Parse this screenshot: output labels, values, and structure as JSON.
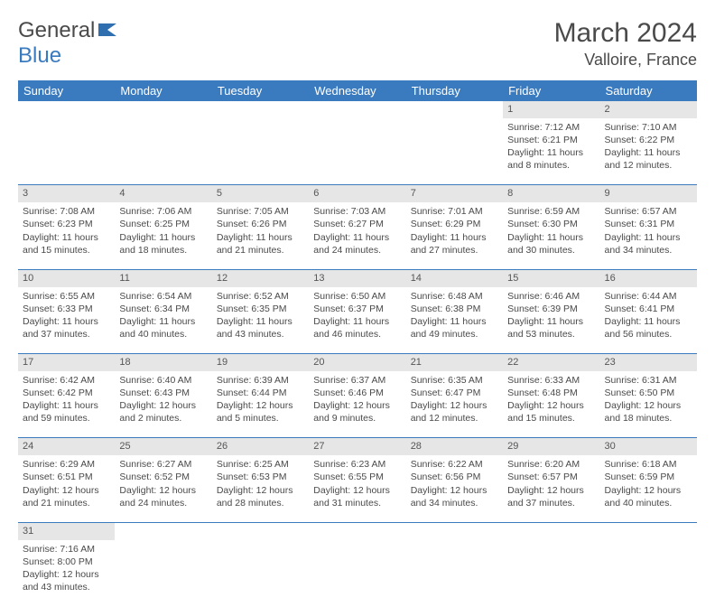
{
  "logo": {
    "part1": "General",
    "part2": "Blue"
  },
  "title": "March 2024",
  "location": "Valloire, France",
  "colors": {
    "header_bg": "#3a7bbf",
    "header_text": "#ffffff",
    "daynum_bg": "#e6e6e6",
    "text": "#4a4a4a",
    "rule": "#3a7bbf"
  },
  "weekdays": [
    "Sunday",
    "Monday",
    "Tuesday",
    "Wednesday",
    "Thursday",
    "Friday",
    "Saturday"
  ],
  "weeks": [
    [
      null,
      null,
      null,
      null,
      null,
      {
        "n": "1",
        "sr": "Sunrise: 7:12 AM",
        "ss": "Sunset: 6:21 PM",
        "d1": "Daylight: 11 hours",
        "d2": "and 8 minutes."
      },
      {
        "n": "2",
        "sr": "Sunrise: 7:10 AM",
        "ss": "Sunset: 6:22 PM",
        "d1": "Daylight: 11 hours",
        "d2": "and 12 minutes."
      }
    ],
    [
      {
        "n": "3",
        "sr": "Sunrise: 7:08 AM",
        "ss": "Sunset: 6:23 PM",
        "d1": "Daylight: 11 hours",
        "d2": "and 15 minutes."
      },
      {
        "n": "4",
        "sr": "Sunrise: 7:06 AM",
        "ss": "Sunset: 6:25 PM",
        "d1": "Daylight: 11 hours",
        "d2": "and 18 minutes."
      },
      {
        "n": "5",
        "sr": "Sunrise: 7:05 AM",
        "ss": "Sunset: 6:26 PM",
        "d1": "Daylight: 11 hours",
        "d2": "and 21 minutes."
      },
      {
        "n": "6",
        "sr": "Sunrise: 7:03 AM",
        "ss": "Sunset: 6:27 PM",
        "d1": "Daylight: 11 hours",
        "d2": "and 24 minutes."
      },
      {
        "n": "7",
        "sr": "Sunrise: 7:01 AM",
        "ss": "Sunset: 6:29 PM",
        "d1": "Daylight: 11 hours",
        "d2": "and 27 minutes."
      },
      {
        "n": "8",
        "sr": "Sunrise: 6:59 AM",
        "ss": "Sunset: 6:30 PM",
        "d1": "Daylight: 11 hours",
        "d2": "and 30 minutes."
      },
      {
        "n": "9",
        "sr": "Sunrise: 6:57 AM",
        "ss": "Sunset: 6:31 PM",
        "d1": "Daylight: 11 hours",
        "d2": "and 34 minutes."
      }
    ],
    [
      {
        "n": "10",
        "sr": "Sunrise: 6:55 AM",
        "ss": "Sunset: 6:33 PM",
        "d1": "Daylight: 11 hours",
        "d2": "and 37 minutes."
      },
      {
        "n": "11",
        "sr": "Sunrise: 6:54 AM",
        "ss": "Sunset: 6:34 PM",
        "d1": "Daylight: 11 hours",
        "d2": "and 40 minutes."
      },
      {
        "n": "12",
        "sr": "Sunrise: 6:52 AM",
        "ss": "Sunset: 6:35 PM",
        "d1": "Daylight: 11 hours",
        "d2": "and 43 minutes."
      },
      {
        "n": "13",
        "sr": "Sunrise: 6:50 AM",
        "ss": "Sunset: 6:37 PM",
        "d1": "Daylight: 11 hours",
        "d2": "and 46 minutes."
      },
      {
        "n": "14",
        "sr": "Sunrise: 6:48 AM",
        "ss": "Sunset: 6:38 PM",
        "d1": "Daylight: 11 hours",
        "d2": "and 49 minutes."
      },
      {
        "n": "15",
        "sr": "Sunrise: 6:46 AM",
        "ss": "Sunset: 6:39 PM",
        "d1": "Daylight: 11 hours",
        "d2": "and 53 minutes."
      },
      {
        "n": "16",
        "sr": "Sunrise: 6:44 AM",
        "ss": "Sunset: 6:41 PM",
        "d1": "Daylight: 11 hours",
        "d2": "and 56 minutes."
      }
    ],
    [
      {
        "n": "17",
        "sr": "Sunrise: 6:42 AM",
        "ss": "Sunset: 6:42 PM",
        "d1": "Daylight: 11 hours",
        "d2": "and 59 minutes."
      },
      {
        "n": "18",
        "sr": "Sunrise: 6:40 AM",
        "ss": "Sunset: 6:43 PM",
        "d1": "Daylight: 12 hours",
        "d2": "and 2 minutes."
      },
      {
        "n": "19",
        "sr": "Sunrise: 6:39 AM",
        "ss": "Sunset: 6:44 PM",
        "d1": "Daylight: 12 hours",
        "d2": "and 5 minutes."
      },
      {
        "n": "20",
        "sr": "Sunrise: 6:37 AM",
        "ss": "Sunset: 6:46 PM",
        "d1": "Daylight: 12 hours",
        "d2": "and 9 minutes."
      },
      {
        "n": "21",
        "sr": "Sunrise: 6:35 AM",
        "ss": "Sunset: 6:47 PM",
        "d1": "Daylight: 12 hours",
        "d2": "and 12 minutes."
      },
      {
        "n": "22",
        "sr": "Sunrise: 6:33 AM",
        "ss": "Sunset: 6:48 PM",
        "d1": "Daylight: 12 hours",
        "d2": "and 15 minutes."
      },
      {
        "n": "23",
        "sr": "Sunrise: 6:31 AM",
        "ss": "Sunset: 6:50 PM",
        "d1": "Daylight: 12 hours",
        "d2": "and 18 minutes."
      }
    ],
    [
      {
        "n": "24",
        "sr": "Sunrise: 6:29 AM",
        "ss": "Sunset: 6:51 PM",
        "d1": "Daylight: 12 hours",
        "d2": "and 21 minutes."
      },
      {
        "n": "25",
        "sr": "Sunrise: 6:27 AM",
        "ss": "Sunset: 6:52 PM",
        "d1": "Daylight: 12 hours",
        "d2": "and 24 minutes."
      },
      {
        "n": "26",
        "sr": "Sunrise: 6:25 AM",
        "ss": "Sunset: 6:53 PM",
        "d1": "Daylight: 12 hours",
        "d2": "and 28 minutes."
      },
      {
        "n": "27",
        "sr": "Sunrise: 6:23 AM",
        "ss": "Sunset: 6:55 PM",
        "d1": "Daylight: 12 hours",
        "d2": "and 31 minutes."
      },
      {
        "n": "28",
        "sr": "Sunrise: 6:22 AM",
        "ss": "Sunset: 6:56 PM",
        "d1": "Daylight: 12 hours",
        "d2": "and 34 minutes."
      },
      {
        "n": "29",
        "sr": "Sunrise: 6:20 AM",
        "ss": "Sunset: 6:57 PM",
        "d1": "Daylight: 12 hours",
        "d2": "and 37 minutes."
      },
      {
        "n": "30",
        "sr": "Sunrise: 6:18 AM",
        "ss": "Sunset: 6:59 PM",
        "d1": "Daylight: 12 hours",
        "d2": "and 40 minutes."
      }
    ],
    [
      {
        "n": "31",
        "sr": "Sunrise: 7:16 AM",
        "ss": "Sunset: 8:00 PM",
        "d1": "Daylight: 12 hours",
        "d2": "and 43 minutes."
      },
      null,
      null,
      null,
      null,
      null,
      null
    ]
  ]
}
